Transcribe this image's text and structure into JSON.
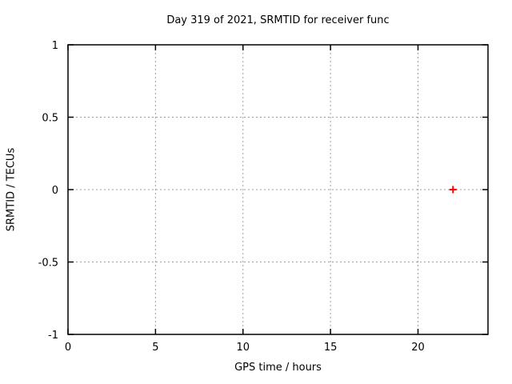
{
  "chart_data": {
    "type": "scatter",
    "title": "Day 319 of 2021, SRMTID for receiver func",
    "xlabel": "GPS time / hours",
    "ylabel": "SRMTID / TECUs",
    "xlim": [
      0,
      24
    ],
    "ylim": [
      -1,
      1
    ],
    "xticks": [
      0,
      5,
      10,
      15,
      20
    ],
    "yticks": [
      -1,
      -0.5,
      0,
      0.5,
      1
    ],
    "grid": true,
    "legend": "none",
    "series": [
      {
        "name": "SRMTID",
        "marker": "plus",
        "color": "#ff0000",
        "points": [
          {
            "x": 22,
            "y": 0
          }
        ]
      }
    ],
    "colors": {
      "background": "#ffffff",
      "border": "#000000",
      "grid": "#9e9e9e",
      "text": "#000000",
      "point": "#ff0000"
    }
  }
}
